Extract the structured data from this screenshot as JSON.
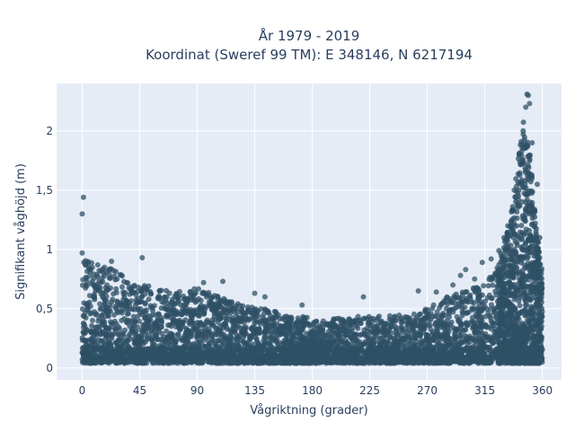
{
  "chart_data": {
    "type": "scatter",
    "title_line1": "År 1979 - 2019",
    "title_line2": "Koordinat (Sweref 99 TM): E 348146, N 6217194",
    "xlabel": "Vågriktning (grader)",
    "ylabel": "Signifikant våghöjd (m)",
    "xlim": [
      -20,
      375
    ],
    "ylim": [
      -0.1,
      2.4
    ],
    "x_ticks": [
      {
        "value": 0,
        "label": "0"
      },
      {
        "value": 45,
        "label": "45"
      },
      {
        "value": 90,
        "label": "90"
      },
      {
        "value": 135,
        "label": "135"
      },
      {
        "value": 180,
        "label": "180"
      },
      {
        "value": 225,
        "label": "225"
      },
      {
        "value": 270,
        "label": "270"
      },
      {
        "value": 315,
        "label": "315"
      },
      {
        "value": 360,
        "label": "360"
      }
    ],
    "y_ticks": [
      {
        "value": 0,
        "label": "0"
      },
      {
        "value": 0.5,
        "label": "0,5"
      },
      {
        "value": 1,
        "label": "1"
      },
      {
        "value": 1.5,
        "label": "1,5"
      },
      {
        "value": 2,
        "label": "2"
      }
    ],
    "grid": true,
    "colors": {
      "plot_bg": "#e5ecf6",
      "grid": "#ffffff",
      "marker": "#2f5066"
    },
    "envelope": {
      "x": [
        0,
        10,
        20,
        30,
        45,
        60,
        75,
        90,
        105,
        120,
        135,
        150,
        165,
        180,
        195,
        210,
        225,
        240,
        255,
        270,
        285,
        300,
        315,
        325,
        335,
        340,
        345,
        350,
        355,
        360
      ],
      "ymax": [
        0.92,
        0.88,
        0.85,
        0.8,
        0.72,
        0.66,
        0.64,
        0.68,
        0.62,
        0.55,
        0.52,
        0.48,
        0.45,
        0.42,
        0.42,
        0.43,
        0.44,
        0.45,
        0.45,
        0.5,
        0.6,
        0.65,
        0.72,
        0.88,
        1.25,
        1.7,
        2.1,
        1.9,
        1.2,
        0.85
      ]
    },
    "outliers": [
      {
        "x": 1,
        "y": 1.44
      },
      {
        "x": 0,
        "y": 1.3
      },
      {
        "x": 0,
        "y": 0.97
      },
      {
        "x": 23,
        "y": 0.9
      },
      {
        "x": 47,
        "y": 0.93
      },
      {
        "x": 95,
        "y": 0.72
      },
      {
        "x": 110,
        "y": 0.73
      },
      {
        "x": 135,
        "y": 0.63
      },
      {
        "x": 143,
        "y": 0.6
      },
      {
        "x": 172,
        "y": 0.53
      },
      {
        "x": 220,
        "y": 0.6
      },
      {
        "x": 263,
        "y": 0.65
      },
      {
        "x": 277,
        "y": 0.64
      },
      {
        "x": 290,
        "y": 0.7
      },
      {
        "x": 296,
        "y": 0.78
      },
      {
        "x": 300,
        "y": 0.83
      },
      {
        "x": 307,
        "y": 0.75
      },
      {
        "x": 313,
        "y": 0.89
      },
      {
        "x": 320,
        "y": 0.92
      },
      {
        "x": 326,
        "y": 0.99
      },
      {
        "x": 330,
        "y": 1.1
      },
      {
        "x": 333,
        "y": 1.2
      },
      {
        "x": 338,
        "y": 1.5
      },
      {
        "x": 342,
        "y": 1.8
      },
      {
        "x": 345,
        "y": 2.0
      },
      {
        "x": 347,
        "y": 2.2
      },
      {
        "x": 348,
        "y": 2.31
      },
      {
        "x": 349,
        "y": 2.3
      },
      {
        "x": 350,
        "y": 2.23
      },
      {
        "x": 352,
        "y": 1.9
      },
      {
        "x": 356,
        "y": 1.55
      },
      {
        "x": 358,
        "y": 1.1
      }
    ]
  }
}
